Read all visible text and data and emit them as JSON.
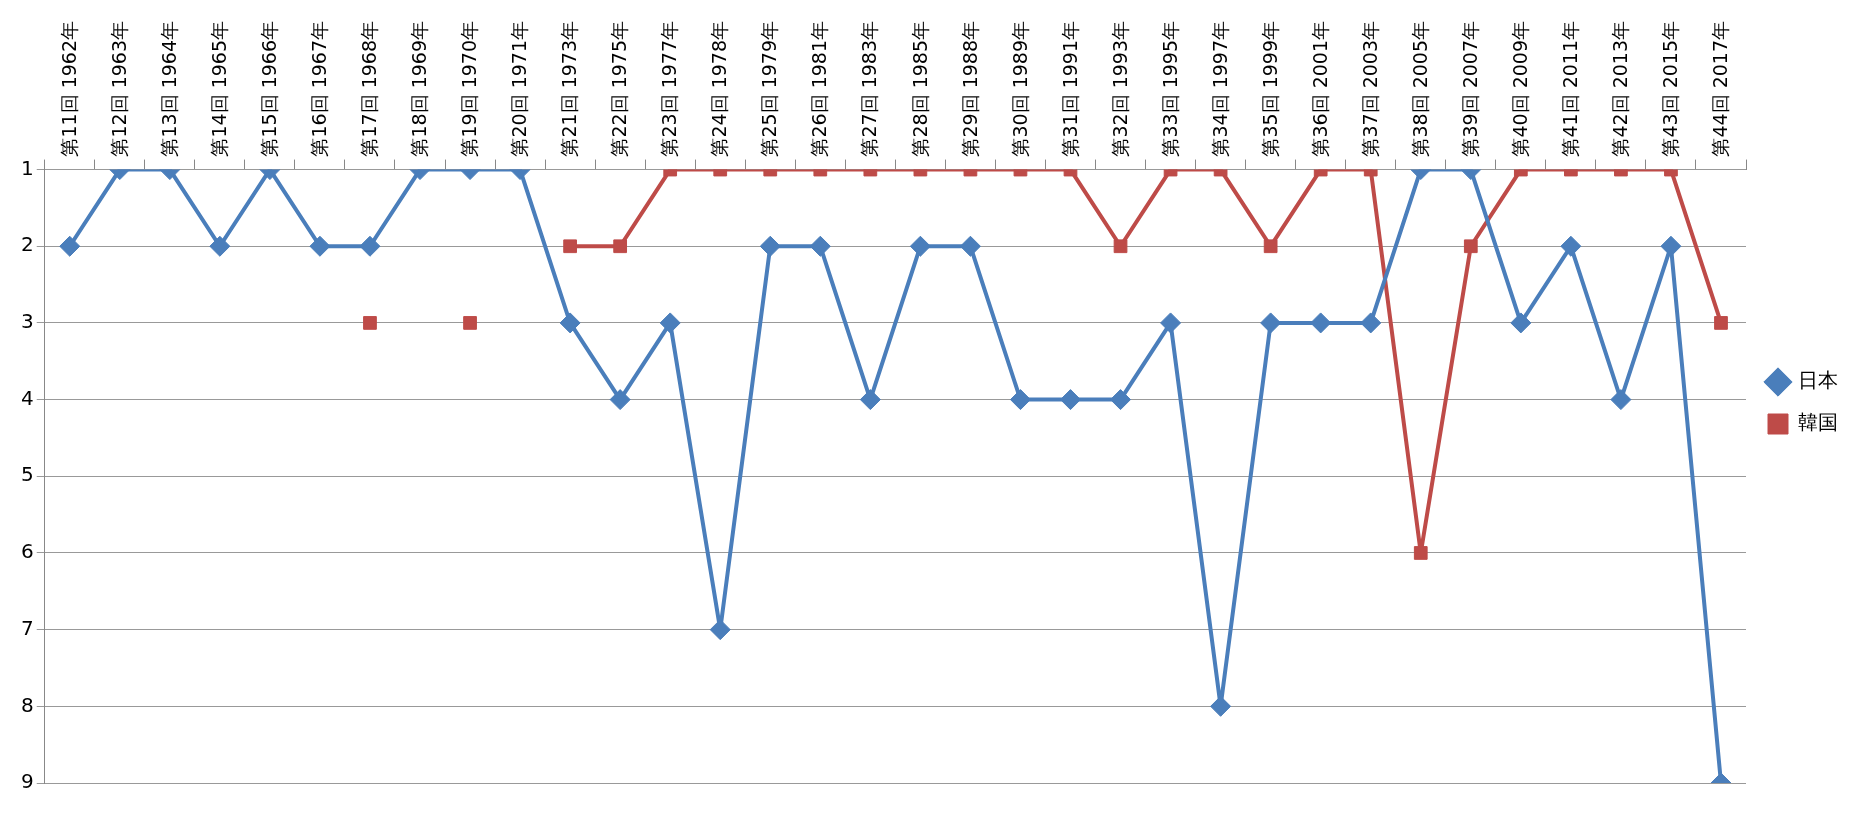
{
  "chart_data": {
    "type": "line",
    "categories": [
      "第11回 1962年",
      "第12回 1963年",
      "第13回 1964年",
      "第14回 1965年",
      "第15回 1966年",
      "第16回 1967年",
      "第17回 1968年",
      "第18回 1969年",
      "第19回 1970年",
      "第20回 1971年",
      "第21回 1973年",
      "第22回 1975年",
      "第23回 1977年",
      "第24回 1978年",
      "第25回 1979年",
      "第26回 1981年",
      "第27回 1983年",
      "第28回 1985年",
      "第29回 1988年",
      "第30回 1989年",
      "第31回 1991年",
      "第32回 1993年",
      "第33回 1995年",
      "第34回 1997年",
      "第35回 1999年",
      "第36回 2001年",
      "第37回 2003年",
      "第38回 2005年",
      "第39回 2007年",
      "第40回 2009年",
      "第41回 2011年",
      "第42回 2013年",
      "第43回 2015年",
      "第44回 2017年"
    ],
    "series": [
      {
        "name": "日本",
        "color": "#4a7ebb",
        "marker": "diamond",
        "values": [
          2,
          1,
          1,
          2,
          1,
          2,
          2,
          1,
          1,
          1,
          3,
          4,
          3,
          7,
          2,
          2,
          4,
          2,
          2,
          4,
          4,
          4,
          3,
          8,
          3,
          3,
          3,
          1,
          1,
          3,
          2,
          4,
          2,
          9
        ]
      },
      {
        "name": "韓国",
        "color": "#be4b48",
        "marker": "square",
        "values": [
          null,
          null,
          null,
          null,
          null,
          null,
          3,
          null,
          3,
          null,
          2,
          2,
          1,
          1,
          1,
          1,
          1,
          1,
          1,
          1,
          1,
          2,
          1,
          1,
          2,
          1,
          1,
          6,
          2,
          1,
          1,
          1,
          1,
          3
        ]
      }
    ],
    "ylim": [
      9,
      1
    ],
    "yticks": [
      1,
      2,
      3,
      4,
      5,
      6,
      7,
      8,
      9
    ],
    "grid": "y",
    "legend": "right"
  }
}
